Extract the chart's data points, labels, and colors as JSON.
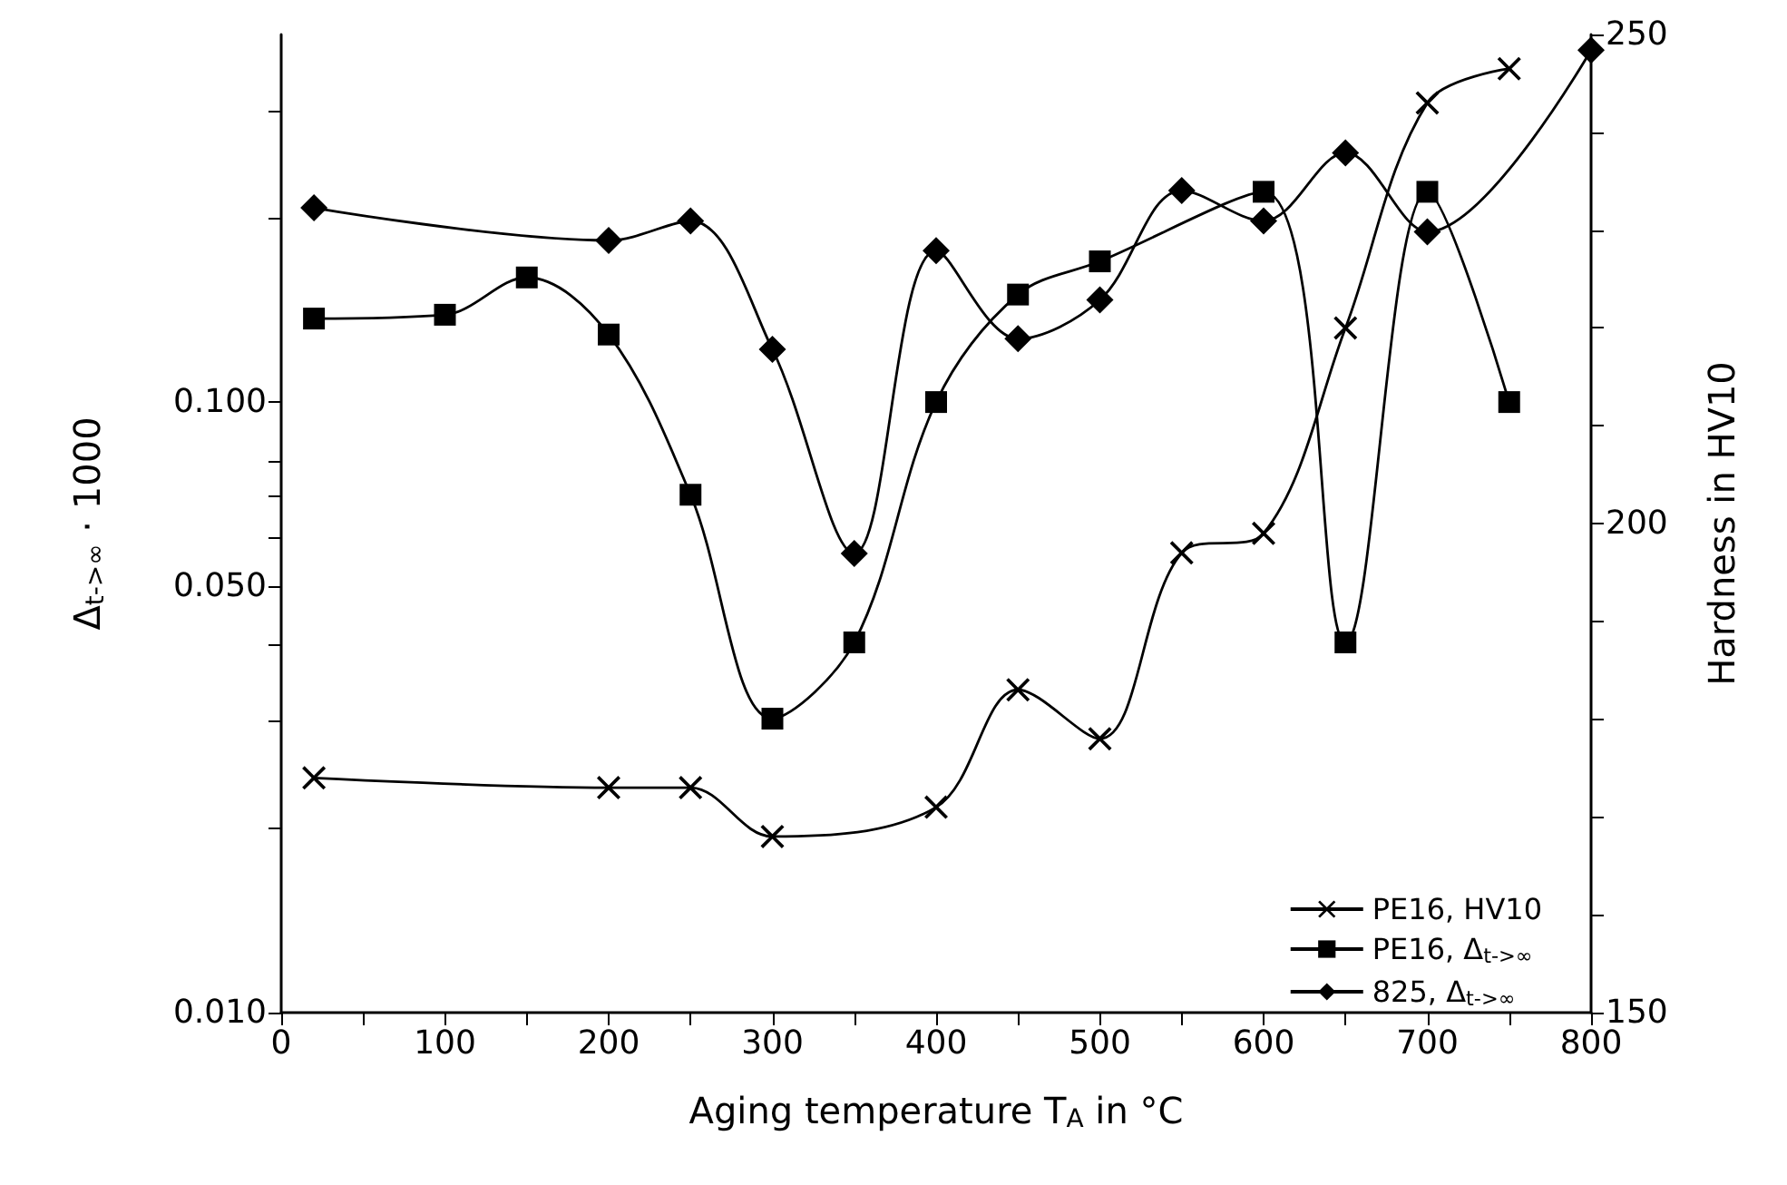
{
  "chart_data": {
    "type": "line",
    "xlabel": "Aging temperature T$_{A}$ in °C",
    "ylabel": "Δ$_{t->∞}$ · 1000",
    "y2label": "Hardness in HV10",
    "log": "y",
    "legend": "bottom right",
    "grid": false,
    "xlim": [
      0,
      800
    ],
    "xticks": [
      0,
      {
        "value": 50,
        "label": null
      },
      100,
      {
        "value": 150,
        "label": null
      },
      200,
      {
        "value": 250,
        "label": null
      },
      300,
      {
        "value": 350,
        "label": null
      },
      400,
      {
        "value": 450,
        "label": null
      },
      500,
      {
        "value": 550,
        "label": null
      },
      600,
      {
        "value": 650,
        "label": null
      },
      700,
      {
        "value": 750,
        "label": null
      },
      800
    ],
    "ylim": [
      0.01,
      0.4
    ],
    "yticks": [
      {
        "value": 0.01,
        "label": "0.010"
      },
      {
        "value": 0.02,
        "label": null
      },
      {
        "value": 0.03,
        "label": null
      },
      {
        "value": 0.04,
        "label": null
      },
      {
        "value": 0.05,
        "label": "0.050"
      },
      {
        "value": 0.06,
        "label": null
      },
      {
        "value": 0.07,
        "label": null
      },
      {
        "value": 0.08,
        "label": null
      },
      {
        "value": 0.1,
        "label": "0.100"
      },
      {
        "value": 0.2,
        "label": null
      },
      {
        "value": 0.3,
        "label": null
      }
    ],
    "y2lim": [
      150,
      250
    ],
    "y2ticks": [
      150,
      {
        "value": 160,
        "label": null
      },
      {
        "value": 170,
        "label": null
      },
      {
        "value": 180,
        "label": null
      },
      {
        "value": 190,
        "label": null
      },
      200,
      {
        "value": 210,
        "label": null
      },
      {
        "value": 220,
        "label": null
      },
      {
        "value": 230,
        "label": null
      },
      {
        "value": 240,
        "label": null
      },
      250
    ],
    "series": [
      {
        "name": "PE16, HV10",
        "color": "#000000",
        "marker": "cross",
        "axis": "y2",
        "x": [
          20,
          200,
          250,
          300,
          400,
          450,
          500,
          550,
          600,
          650,
          700,
          750
        ],
        "values": [
          174,
          173,
          173,
          168,
          171,
          183,
          178,
          197,
          199,
          220,
          243,
          246.5
        ]
      },
      {
        "name": "PE16, Δ$_{t->∞}$",
        "color": "#000000",
        "marker": "square",
        "x": [
          20,
          100,
          150,
          200,
          250,
          300,
          350,
          400,
          450,
          500,
          600,
          650,
          700,
          750
        ],
        "values": [
          0.137,
          0.139,
          0.16,
          0.129,
          0.0705,
          0.0303,
          0.0404,
          0.1,
          0.15,
          0.17,
          0.221,
          0.0404,
          0.221,
          0.1
        ]
      },
      {
        "name": "825, Δ$_{t->∞}$",
        "color": "#000000",
        "marker": "diamond",
        "x": [
          20,
          200,
          250,
          300,
          350,
          400,
          450,
          500,
          550,
          600,
          650,
          700,
          800
        ],
        "values": [
          0.208,
          0.184,
          0.198,
          0.122,
          0.0565,
          0.177,
          0.127,
          0.147,
          0.222,
          0.198,
          0.256,
          0.19,
          0.377
        ]
      }
    ]
  }
}
